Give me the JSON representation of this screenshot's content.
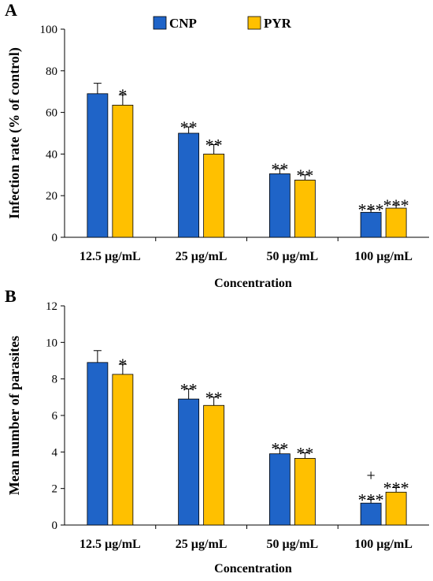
{
  "colors": {
    "CNP": "#1f64c8",
    "PYR": "#ffc000",
    "axis": "#000000"
  },
  "legend": {
    "position": "top-center"
  },
  "chart_data": [
    {
      "type": "bar",
      "panel_label": "A",
      "categories": [
        "12.5 µg/mL",
        "25 µg/mL",
        "50 µg/mL",
        "100 µg/mL"
      ],
      "series": [
        {
          "name": "CNP",
          "values": [
            69,
            50,
            30.5,
            12
          ],
          "errors": [
            5,
            3,
            2.5,
            1.5
          ],
          "annotations": [
            "",
            "**",
            "**",
            "***"
          ]
        },
        {
          "name": "PYR",
          "values": [
            63.5,
            40,
            27.5,
            14
          ],
          "errors": [
            5,
            4.5,
            2.5,
            1.5
          ],
          "annotations": [
            "*",
            "**",
            "**",
            "***"
          ]
        }
      ],
      "xlabel": "Concentration",
      "ylabel": "Infection rate (% of control)",
      "ylim": [
        0,
        100
      ],
      "yticks": [
        0,
        20,
        40,
        60,
        80,
        100
      ],
      "grid": false
    },
    {
      "type": "bar",
      "panel_label": "B",
      "categories": [
        "12.5 µg/mL",
        "25 µg/mL",
        "50 µg/mL",
        "100 µg/mL"
      ],
      "series": [
        {
          "name": "CNP",
          "values": [
            8.9,
            6.9,
            3.9,
            1.2
          ],
          "errors": [
            0.65,
            0.55,
            0.3,
            0.2
          ],
          "annotations": [
            "",
            "**",
            "**",
            "+\n***"
          ]
        },
        {
          "name": "PYR",
          "values": [
            8.25,
            6.55,
            3.65,
            1.8
          ],
          "errors": [
            0.55,
            0.45,
            0.3,
            0.25
          ],
          "annotations": [
            "*",
            "**",
            "**",
            "***"
          ]
        }
      ],
      "xlabel": "Concentration",
      "ylabel": "Mean number of parasites",
      "ylim": [
        0,
        12
      ],
      "yticks": [
        0,
        2,
        4,
        6,
        8,
        10,
        12
      ],
      "grid": false
    }
  ]
}
